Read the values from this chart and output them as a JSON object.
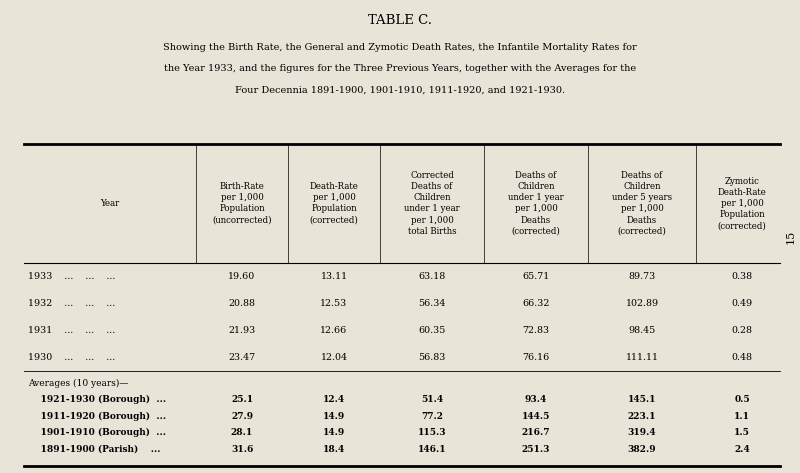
{
  "title": "TABLE C.",
  "subtitle_lines": [
    "Showing the Birth Rate, the General and Zymotic Death Rates, the Infantile Mortality Rates for",
    "the Year 1933, and the figures for the Three Previous Years, together with the Averages for the",
    "Four Decennia 1891-1900, 1901-1910, 1911-1920, and 1921-1930."
  ],
  "col_headers": [
    "Year",
    "Birth-Rate\nper 1,000\nPopulation\n(uncorrected)",
    "Death-Rate\nper 1,000\nPopulation\n(corrected)",
    "Corrected\nDeaths of\nChildren\nunder 1 year\nper 1,000\ntotal Births",
    "Deaths of\nChildren\nunder 1 year\nper 1,000\nDeaths\n(corrected)",
    "Deaths of\nChildren\nunder 5 years\nper 1,000\nDeaths\n(corrected)",
    "Zymotic\nDeath-Rate\nper 1,000\nPopulation\n(corrected)"
  ],
  "rows": [
    [
      "1933    ...    ...    ...",
      "19.60",
      "13.11",
      "63.18",
      "65.71",
      "89.73",
      "0.38"
    ],
    [
      "1932    ...    ...    ...",
      "20.88",
      "12.53",
      "56.34",
      "66.32",
      "102.89",
      "0.49"
    ],
    [
      "1931    ...    ...    ...",
      "21.93",
      "12.66",
      "60.35",
      "72.83",
      "98.45",
      "0.28"
    ],
    [
      "1930    ...    ...    ...",
      "23.47",
      "12.04",
      "56.83",
      "76.16",
      "111.11",
      "0.48"
    ]
  ],
  "avg_header": "Averages (10 years)—",
  "avg_rows": [
    [
      "    1921-1930 (Borough)  ...",
      "25.1",
      "12.4",
      "51.4",
      "93.4",
      "145.1",
      "0.5"
    ],
    [
      "    1911-1920 (Borough)  ...",
      "27.9",
      "14.9",
      "77.2",
      "144.5",
      "223.1",
      "1.1"
    ],
    [
      "    1901-1910 (Borough)  ...",
      "28.1",
      "14.9",
      "115.3",
      "216.7",
      "319.4",
      "1.5"
    ],
    [
      "    1891-1900 (Parish)    ...",
      "31.6",
      "18.4",
      "146.1",
      "251.3",
      "382.9",
      "2.4"
    ]
  ],
  "bg_color": "#e8e4d8",
  "page_number": "15"
}
